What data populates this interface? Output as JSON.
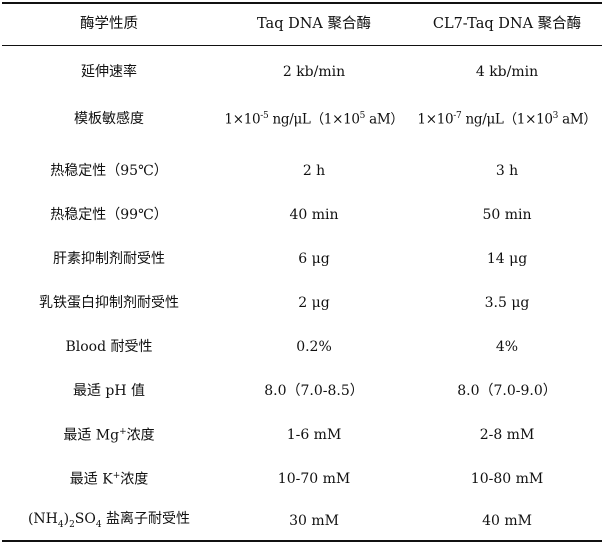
{
  "header": {
    "col1": "酶学性质",
    "col2": "Taq DNA 聚合酶",
    "col3": "CL7-Taq DNA 聚合酶"
  },
  "rows": [
    {
      "property": "延伸速率",
      "taq": "2 kb/min",
      "cl7": "4 kb/min"
    },
    {
      "property": "模板敏感度",
      "taq": {
        "a": "1×10",
        "exp": "-5",
        "b": " ng/μL（1×10",
        "exp2": "5",
        "c": " aM）"
      },
      "cl7": {
        "a": "1×10",
        "exp": "-7",
        "b": " ng/μL（1×10",
        "exp2": "3",
        "c": " aM）"
      }
    },
    {
      "property": "热稳定性（95℃）",
      "taq": "2 h",
      "cl7": "3 h"
    },
    {
      "property": "热稳定性（99℃）",
      "taq": "40 min",
      "cl7": "50 min"
    },
    {
      "property": "肝素抑制剂耐受性",
      "taq": "6 μg",
      "cl7": "14 μg"
    },
    {
      "property": "乳铁蛋白抑制剂耐受性",
      "taq": "2 μg",
      "cl7": "3.5 μg"
    },
    {
      "property": "Blood 耐受性",
      "taq": "0.2%",
      "cl7": "4%"
    },
    {
      "property": "最适 pH 值",
      "taq": "8.0（7.0-8.5）",
      "cl7": "8.0（7.0-9.0）"
    },
    {
      "property": {
        "a": "最适 Mg",
        "sup": "+",
        "b": "浓度"
      },
      "taq": "1-6 mM",
      "cl7": "2-8 mM"
    },
    {
      "property": {
        "a": "最适 K",
        "sup": "+",
        "b": "浓度"
      },
      "taq": "10-70 mM",
      "cl7": "10-80 mM"
    },
    {
      "property": {
        "a": "(NH",
        "sub1": "4",
        "b": ")",
        "sub2": "2",
        "c": "SO",
        "sub3": "4",
        "d": " 盐离子耐受性"
      },
      "taq": "30 mM",
      "cl7": "40 mM"
    }
  ]
}
